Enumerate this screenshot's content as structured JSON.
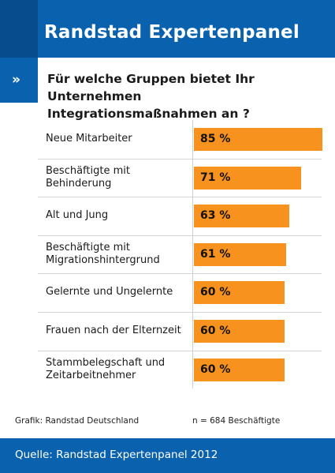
{
  "header": {
    "title": "Randstad Expertenpanel"
  },
  "question": {
    "marker": "»",
    "line1": "Für welche Gruppen bietet Ihr Unternehmen",
    "line2": "Integrationsmaßnahmen an ?"
  },
  "chart_data": {
    "type": "bar",
    "orientation": "horizontal",
    "title": "Für welche Gruppen bietet Ihr Unternehmen Integrationsmaßnahmen an ?",
    "categories": [
      [
        "Neue Mitarbeiter"
      ],
      [
        "Beschäftigte mit",
        "Behinderung"
      ],
      [
        "Alt und Jung"
      ],
      [
        "Beschäftigte mit",
        "Migrationshintergrund"
      ],
      [
        "Gelernte und Ungelernte"
      ],
      [
        "Frauen nach der Elternzeit"
      ],
      [
        "Stammbelegschaft und",
        "Zeitarbeitnehmer"
      ]
    ],
    "values": [
      85,
      71,
      63,
      61,
      60,
      60,
      60
    ],
    "value_labels": [
      "85 %",
      "71 %",
      "63 %",
      "61 %",
      "60 %",
      "60 %",
      "60 %"
    ],
    "unit": "%",
    "xlim": [
      0,
      85
    ],
    "bar_color": "#f7921e"
  },
  "notes": {
    "left": "Grafik: Randstad Deutschland",
    "right": "n = 684 Beschäftigte"
  },
  "footer": {
    "source": "Quelle: Randstad Expertenpanel 2012"
  },
  "colors": {
    "brand_blue": "#0a62ae",
    "accent_orange": "#f7921e"
  }
}
